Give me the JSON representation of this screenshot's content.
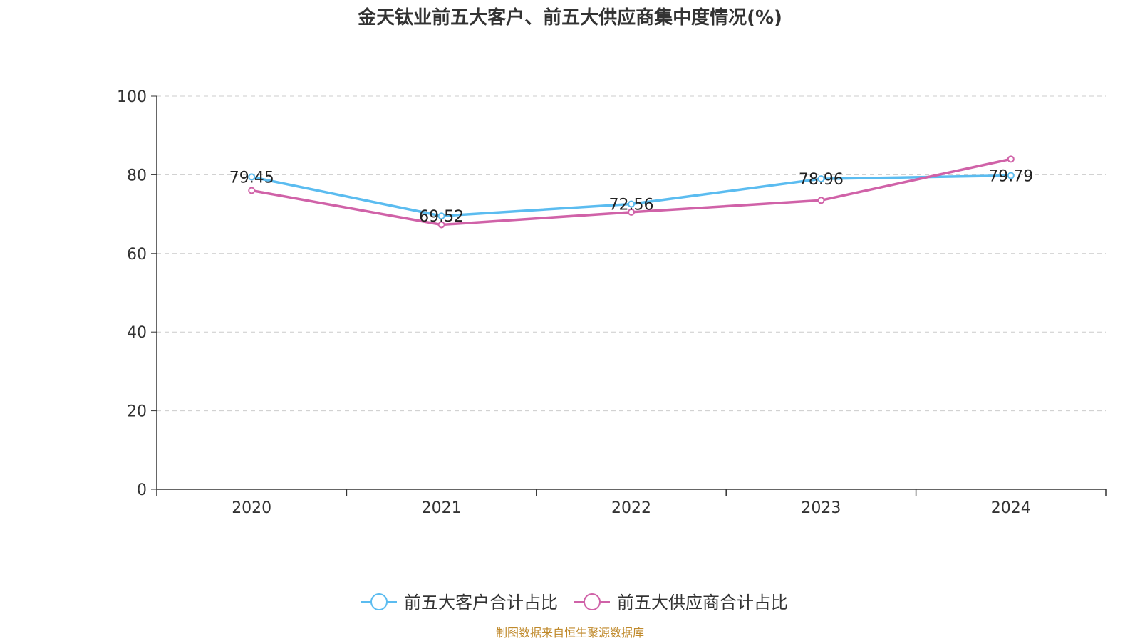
{
  "title": "金天钛业前五大客户、前五大供应商集中度情况(%)",
  "source": "制图数据来自恒生聚源数据库",
  "chart_data": {
    "type": "line",
    "title": "金天钛业前五大客户、前五大供应商集中度情况(%)",
    "categories": [
      "2020",
      "2021",
      "2022",
      "2023",
      "2024"
    ],
    "ylim": [
      0,
      100
    ],
    "yticks": [
      "0",
      "20",
      "40",
      "60",
      "80",
      "100"
    ],
    "grid": "horizontal-dashed",
    "legend_position": "bottom",
    "series": [
      {
        "name": "前五大客户合计占比",
        "color": "#5bbcf0",
        "values": [
          79.45,
          69.52,
          72.56,
          78.96,
          79.79
        ],
        "labels": [
          "79.45",
          "69.52",
          "72.56",
          "78.96",
          "79.79"
        ]
      },
      {
        "name": "前五大供应商合计占比",
        "color": "#d062a8",
        "values": [
          76.0,
          67.3,
          70.5,
          73.5,
          84.0
        ]
      }
    ]
  }
}
